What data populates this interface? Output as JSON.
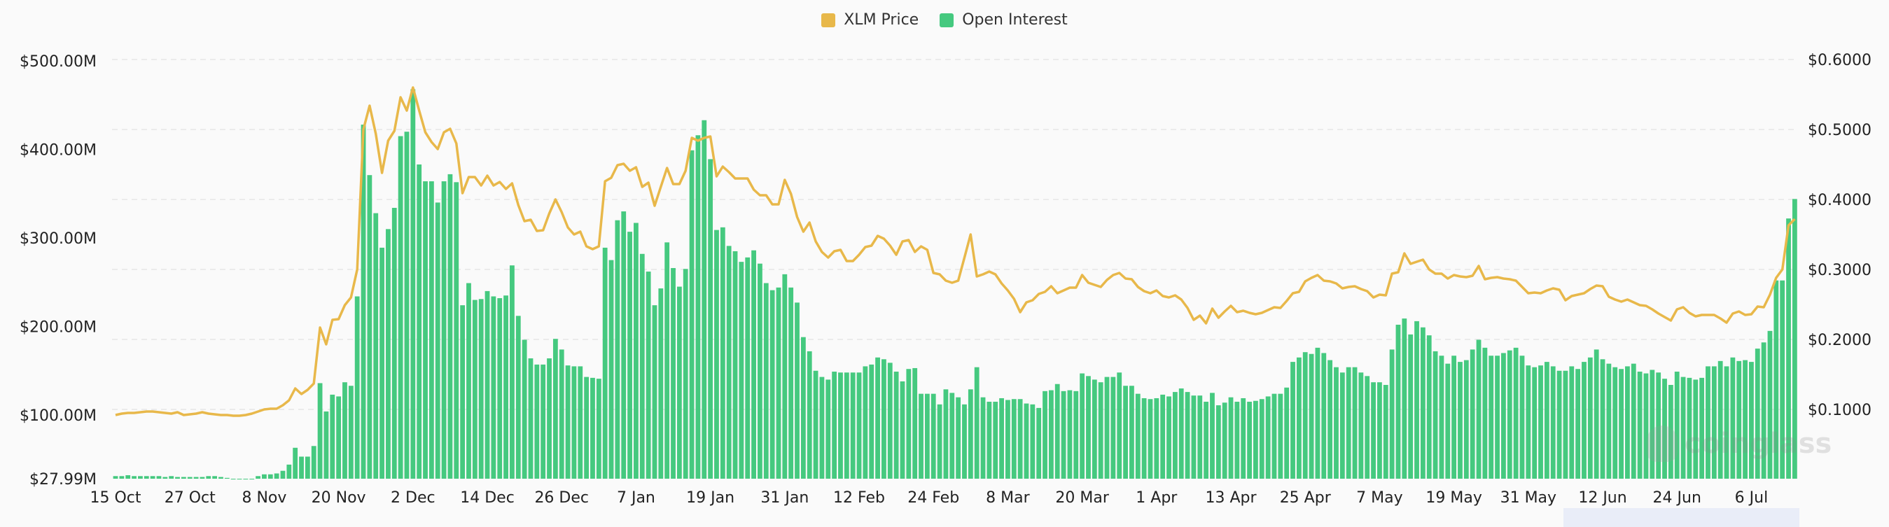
{
  "legend": [
    {
      "label": "XLM Price",
      "color": "#e8b84a"
    },
    {
      "label": "Open Interest",
      "color": "#45c97f"
    }
  ],
  "watermark": "coinglass",
  "chart_data": {
    "type": "bar+line",
    "legend_position": "top",
    "grid": true,
    "x_ticks": [
      "15 Oct",
      "27 Oct",
      "8 Nov",
      "20 Nov",
      "2 Dec",
      "14 Dec",
      "26 Dec",
      "7 Jan",
      "19 Jan",
      "31 Jan",
      "12 Feb",
      "24 Feb",
      "8 Mar",
      "20 Mar",
      "1 Apr",
      "13 Apr",
      "25 Apr",
      "7 May",
      "19 May",
      "31 May",
      "12 Jun",
      "24 Jun",
      "6 Jul"
    ],
    "y_left_ticks": [
      "$500.00M",
      "$400.00M",
      "$300.00M",
      "$200.00M",
      "$100.00M",
      "$27.99M"
    ],
    "y_right_ticks": [
      "$0.6000",
      "$0.5000",
      "$0.4000",
      "$0.3000",
      "$0.2000",
      "$0.1000"
    ],
    "y_left_unit": "USD millions",
    "y_left_range": [
      27.99,
      500
    ],
    "y_right_range": [
      0,
      0.6
    ],
    "categories": [
      "15 Oct",
      "16 Oct",
      "17 Oct",
      "18 Oct",
      "19 Oct",
      "20 Oct",
      "21 Oct",
      "22 Oct",
      "23 Oct",
      "24 Oct",
      "25 Oct",
      "26 Oct",
      "27 Oct",
      "28 Oct",
      "29 Oct",
      "30 Oct",
      "31 Oct",
      "1 Nov",
      "2 Nov",
      "3 Nov",
      "4 Nov",
      "5 Nov",
      "6 Nov",
      "7 Nov",
      "8 Nov",
      "9 Nov",
      "10 Nov",
      "11 Nov",
      "12 Nov",
      "13 Nov",
      "14 Nov",
      "15 Nov",
      "16 Nov",
      "17 Nov",
      "18 Nov",
      "19 Nov",
      "20 Nov",
      "21 Nov",
      "22 Nov",
      "23 Nov",
      "24 Nov",
      "25 Nov",
      "26 Nov",
      "27 Nov",
      "28 Nov",
      "29 Nov",
      "30 Nov",
      "1 Dec",
      "2 Dec",
      "3 Dec",
      "4 Dec",
      "5 Dec",
      "6 Dec",
      "7 Dec",
      "8 Dec",
      "9 Dec",
      "10 Dec",
      "11 Dec",
      "12 Dec",
      "13 Dec",
      "14 Dec",
      "15 Dec",
      "16 Dec",
      "17 Dec",
      "18 Dec",
      "19 Dec",
      "20 Dec",
      "21 Dec",
      "22 Dec",
      "23 Dec",
      "24 Dec",
      "25 Dec",
      "26 Dec",
      "27 Dec",
      "28 Dec",
      "29 Dec",
      "30 Dec",
      "31 Dec",
      "1 Jan",
      "2 Jan",
      "3 Jan",
      "4 Jan",
      "5 Jan",
      "6 Jan",
      "7 Jan",
      "8 Jan",
      "9 Jan",
      "10 Jan",
      "11 Jan",
      "12 Jan",
      "13 Jan",
      "14 Jan",
      "15 Jan",
      "16 Jan",
      "17 Jan",
      "18 Jan",
      "19 Jan",
      "20 Jan",
      "21 Jan",
      "22 Jan",
      "23 Jan",
      "24 Jan",
      "25 Jan",
      "26 Jan",
      "27 Jan",
      "28 Jan",
      "29 Jan",
      "30 Jan",
      "31 Jan",
      "1 Feb",
      "2 Feb",
      "3 Feb",
      "4 Feb",
      "5 Feb",
      "6 Feb",
      "7 Feb",
      "8 Feb",
      "9 Feb",
      "10 Feb",
      "11 Feb",
      "12 Feb",
      "13 Feb",
      "14 Feb",
      "15 Feb",
      "16 Feb",
      "17 Feb",
      "18 Feb",
      "19 Feb",
      "20 Feb",
      "21 Feb",
      "22 Feb",
      "23 Feb",
      "24 Feb",
      "25 Feb",
      "26 Feb",
      "27 Feb",
      "28 Feb",
      "1 Mar",
      "2 Mar",
      "3 Mar",
      "4 Mar",
      "5 Mar",
      "6 Mar",
      "7 Mar",
      "8 Mar",
      "9 Mar",
      "10 Mar",
      "11 Mar",
      "12 Mar",
      "13 Mar",
      "14 Mar",
      "15 Mar",
      "16 Mar",
      "17 Mar",
      "18 Mar",
      "19 Mar",
      "20 Mar",
      "21 Mar",
      "22 Mar",
      "23 Mar",
      "24 Mar",
      "25 Mar",
      "26 Mar",
      "27 Mar",
      "28 Mar",
      "29 Mar",
      "30 Mar",
      "31 Mar",
      "1 Apr",
      "2 Apr",
      "3 Apr",
      "4 Apr",
      "5 Apr",
      "6 Apr",
      "7 Apr",
      "8 Apr",
      "9 Apr",
      "10 Apr",
      "11 Apr",
      "12 Apr",
      "13 Apr",
      "14 Apr",
      "15 Apr",
      "16 Apr",
      "17 Apr",
      "18 Apr",
      "19 Apr",
      "20 Apr",
      "21 Apr",
      "22 Apr",
      "23 Apr",
      "24 Apr",
      "25 Apr",
      "26 Apr",
      "27 Apr",
      "28 Apr",
      "29 Apr",
      "30 Apr",
      "1 May",
      "2 May",
      "3 May",
      "4 May",
      "5 May",
      "6 May",
      "7 May",
      "8 May",
      "9 May",
      "10 May",
      "11 May",
      "12 May",
      "13 May",
      "14 May",
      "15 May",
      "16 May",
      "17 May",
      "18 May",
      "19 May",
      "20 May",
      "21 May",
      "22 May",
      "23 May",
      "24 May",
      "25 May",
      "26 May",
      "27 May",
      "28 May",
      "29 May",
      "30 May",
      "31 May",
      "1 Jun",
      "2 Jun",
      "3 Jun",
      "4 Jun",
      "5 Jun",
      "6 Jun",
      "7 Jun",
      "8 Jun",
      "9 Jun",
      "10 Jun",
      "11 Jun",
      "12 Jun",
      "13 Jun",
      "14 Jun",
      "15 Jun",
      "16 Jun",
      "17 Jun",
      "18 Jun",
      "19 Jun",
      "20 Jun",
      "21 Jun",
      "22 Jun",
      "23 Jun",
      "24 Jun",
      "25 Jun",
      "26 Jun",
      "27 Jun",
      "28 Jun",
      "29 Jun",
      "30 Jun",
      "1 Jul",
      "2 Jul",
      "3 Jul",
      "4 Jul",
      "5 Jul",
      "6 Jul",
      "7 Jul",
      "8 Jul",
      "9 Jul",
      "10 Jul",
      "11 Jul",
      "12 Jul",
      "13 Jul"
    ],
    "series": [
      {
        "name": "Open Interest",
        "type": "bar",
        "axis": "left",
        "color": "#45c97f",
        "values": [
          31,
          31,
          32,
          31,
          31,
          31,
          31,
          31,
          30,
          31,
          30,
          30,
          30,
          30,
          30,
          31,
          31,
          30,
          29,
          28,
          28,
          28,
          28,
          31,
          33,
          33,
          34,
          37,
          44,
          63,
          53,
          53,
          65,
          136,
          104,
          123,
          121,
          137,
          133,
          234,
          428,
          371,
          328,
          289,
          310,
          334,
          415,
          420,
          468,
          383,
          364,
          364,
          340,
          364,
          372,
          363,
          224,
          249,
          230,
          231,
          240,
          234,
          232,
          235,
          269,
          212,
          185,
          164,
          157,
          157,
          164,
          186,
          174,
          156,
          155,
          155,
          143,
          142,
          141,
          289,
          275,
          320,
          330,
          307,
          317,
          282,
          262,
          224,
          243,
          295,
          266,
          245,
          265,
          399,
          416,
          433,
          389,
          309,
          312,
          291,
          285,
          273,
          278,
          286,
          271,
          249,
          241,
          244,
          259,
          244,
          227,
          188,
          172,
          150,
          143,
          140,
          149,
          148,
          148,
          148,
          148,
          155,
          157,
          165,
          163,
          159,
          149,
          138,
          152,
          153,
          124,
          124,
          124,
          112,
          129,
          125,
          120,
          112,
          129,
          154,
          120,
          115,
          115,
          119,
          117,
          118,
          118,
          113,
          112,
          108,
          127,
          128,
          135,
          127,
          128,
          127,
          147,
          144,
          140,
          137,
          143,
          143,
          148,
          133,
          133,
          124,
          119,
          118,
          119,
          123,
          121,
          126,
          130,
          126,
          122,
          122,
          115,
          125,
          111,
          114,
          120,
          115,
          119,
          115,
          116,
          118,
          121,
          124,
          124,
          131,
          160,
          165,
          171,
          169,
          176,
          170,
          162,
          154,
          148,
          154,
          154,
          148,
          144,
          137,
          137,
          134,
          174,
          202,
          209,
          191,
          206,
          199,
          190,
          172,
          167,
          158,
          167,
          160,
          162,
          174,
          185,
          176,
          167,
          167,
          170,
          173,
          176,
          167,
          156,
          154,
          156,
          160,
          155,
          150,
          150,
          155,
          152,
          160,
          165,
          174,
          163,
          158,
          154,
          152,
          155,
          158,
          149,
          147,
          151,
          148,
          141,
          134,
          149,
          143,
          142,
          140,
          142,
          155,
          155,
          161,
          155,
          165,
          161,
          162,
          160,
          175,
          182,
          195,
          252,
          252,
          322,
          344
        ]
      },
      {
        "name": "XLM Price",
        "type": "line",
        "axis": "right",
        "color": "#e8b84a",
        "values": [
          0.092,
          0.094,
          0.095,
          0.095,
          0.096,
          0.097,
          0.097,
          0.096,
          0.095,
          0.094,
          0.096,
          0.092,
          0.093,
          0.094,
          0.096,
          0.094,
          0.093,
          0.092,
          0.092,
          0.091,
          0.091,
          0.092,
          0.094,
          0.097,
          0.1,
          0.101,
          0.101,
          0.106,
          0.113,
          0.13,
          0.122,
          0.128,
          0.137,
          0.217,
          0.193,
          0.228,
          0.229,
          0.249,
          0.26,
          0.3,
          0.5,
          0.534,
          0.494,
          0.438,
          0.484,
          0.498,
          0.546,
          0.527,
          0.56,
          0.527,
          0.496,
          0.482,
          0.472,
          0.496,
          0.501,
          0.48,
          0.409,
          0.432,
          0.432,
          0.42,
          0.434,
          0.42,
          0.425,
          0.415,
          0.423,
          0.392,
          0.369,
          0.371,
          0.355,
          0.356,
          0.38,
          0.4,
          0.382,
          0.36,
          0.35,
          0.354,
          0.333,
          0.329,
          0.333,
          0.426,
          0.431,
          0.449,
          0.451,
          0.441,
          0.446,
          0.418,
          0.424,
          0.391,
          0.418,
          0.445,
          0.422,
          0.422,
          0.441,
          0.488,
          0.484,
          0.488,
          0.49,
          0.433,
          0.447,
          0.439,
          0.43,
          0.43,
          0.43,
          0.414,
          0.406,
          0.406,
          0.393,
          0.393,
          0.428,
          0.408,
          0.375,
          0.354,
          0.367,
          0.34,
          0.325,
          0.317,
          0.326,
          0.328,
          0.312,
          0.312,
          0.321,
          0.332,
          0.334,
          0.348,
          0.344,
          0.334,
          0.321,
          0.34,
          0.342,
          0.325,
          0.333,
          0.328,
          0.295,
          0.293,
          0.284,
          0.281,
          0.284,
          0.317,
          0.35,
          0.29,
          0.293,
          0.297,
          0.293,
          0.28,
          0.27,
          0.258,
          0.239,
          0.253,
          0.256,
          0.265,
          0.268,
          0.276,
          0.266,
          0.27,
          0.274,
          0.274,
          0.292,
          0.281,
          0.278,
          0.275,
          0.285,
          0.292,
          0.295,
          0.287,
          0.286,
          0.275,
          0.269,
          0.266,
          0.27,
          0.262,
          0.26,
          0.263,
          0.257,
          0.245,
          0.228,
          0.234,
          0.223,
          0.244,
          0.231,
          0.24,
          0.248,
          0.239,
          0.241,
          0.238,
          0.236,
          0.238,
          0.242,
          0.246,
          0.245,
          0.255,
          0.266,
          0.268,
          0.283,
          0.288,
          0.292,
          0.284,
          0.283,
          0.28,
          0.273,
          0.275,
          0.276,
          0.272,
          0.269,
          0.26,
          0.264,
          0.263,
          0.294,
          0.296,
          0.323,
          0.308,
          0.311,
          0.314,
          0.3,
          0.294,
          0.294,
          0.287,
          0.292,
          0.29,
          0.289,
          0.291,
          0.305,
          0.286,
          0.288,
          0.289,
          0.287,
          0.286,
          0.284,
          0.275,
          0.266,
          0.267,
          0.266,
          0.27,
          0.273,
          0.271,
          0.256,
          0.262,
          0.264,
          0.266,
          0.272,
          0.277,
          0.276,
          0.261,
          0.257,
          0.254,
          0.257,
          0.253,
          0.249,
          0.248,
          0.243,
          0.237,
          0.232,
          0.227,
          0.243,
          0.246,
          0.238,
          0.233,
          0.235,
          0.235,
          0.235,
          0.23,
          0.224,
          0.237,
          0.24,
          0.235,
          0.236,
          0.247,
          0.246,
          0.264,
          0.288,
          0.3,
          0.363,
          0.372
        ]
      }
    ]
  }
}
